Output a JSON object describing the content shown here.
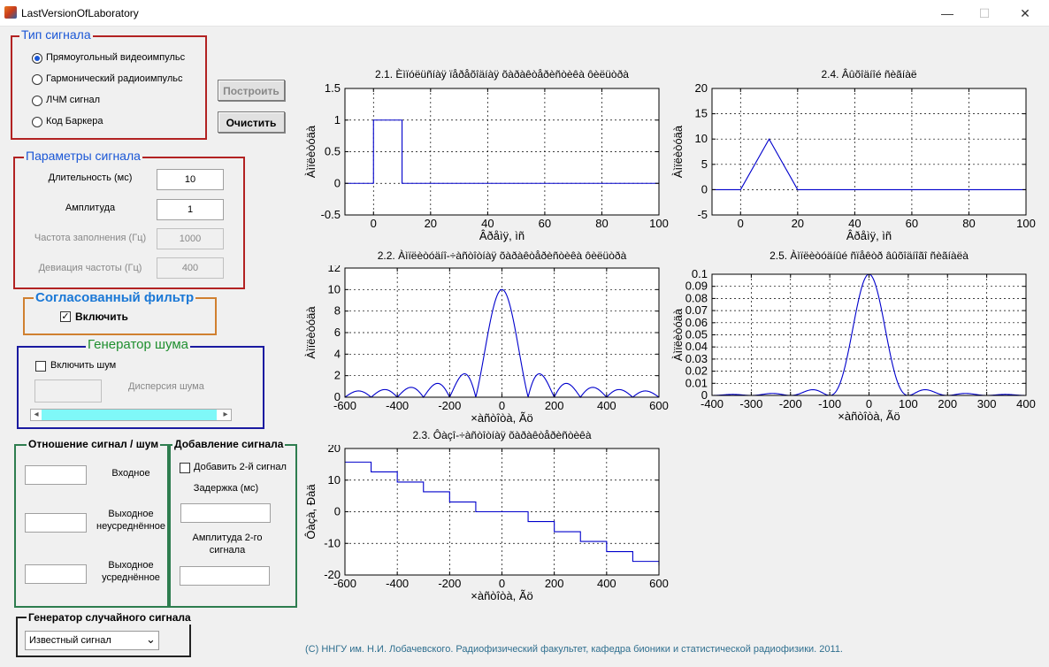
{
  "window": {
    "title": "LastVersionOfLaboratory",
    "minimize": "—",
    "maximize": "☐",
    "close": "✕"
  },
  "signal_type": {
    "legend": "Тип сигнала",
    "options": [
      {
        "label": "Прямоугольный видеоимпульс",
        "selected": true
      },
      {
        "label": "Гармонический радиоимпульс",
        "selected": false
      },
      {
        "label": "ЛЧМ сигнал",
        "selected": false
      },
      {
        "label": "Код Баркера",
        "selected": false
      }
    ]
  },
  "buttons": {
    "build": "Построить",
    "clear": "Очистить"
  },
  "params": {
    "legend": "Параметры сигнала",
    "duration_label": "Длительность (мс)",
    "duration_value": "10",
    "amplitude_label": "Амплитуда",
    "amplitude_value": "1",
    "freq_label": "Частота заполнения (Гц)",
    "freq_value": "1000",
    "deviation_label": "Девиация частоты (Гц)",
    "deviation_value": "400"
  },
  "matched_filter": {
    "legend": "Согласованный фильтр",
    "enable_label": "Включить",
    "enabled": true
  },
  "noise": {
    "legend": "Генератор шума",
    "enable_label": "Включить шум",
    "enabled": false,
    "variance_label": "Дисперсия шума",
    "scroll_left": "◂",
    "scroll_right": "▸"
  },
  "snr": {
    "legend": "Отношение сигнал / шум",
    "input_label": "Входное",
    "out_raw_label": "Выходное неусреднённое",
    "out_avg_label": "Выходное усреднённое"
  },
  "add_signal": {
    "legend": "Добавление сигнала",
    "enable_label": "Добавить 2-й сигнал",
    "delay_label": "Задержка (мс)",
    "amp2_label": "Амплитуда 2-го сигнала"
  },
  "random_gen": {
    "legend": "Генератор случайного сигнала",
    "selected": "Известный сигнал",
    "arrow": "⌄"
  },
  "footer": "(C) ННГУ им. Н.И. Лобачевского. Радиофизический факультет, кафедра бионики и статистической радиофизики. 2011.",
  "colors": {
    "plot_line": "#0000cc",
    "group_red": "#b22222",
    "group_orange": "#d08030",
    "group_blue": "#1a1aa0",
    "group_green": "#2e7d4f"
  },
  "chart_data": [
    {
      "id": "p21",
      "type": "line",
      "title": "2.1. Èìïóëüñíàÿ ïåðåõîäíàÿ õàðàêòåðèñòèêà ôèëüòðà",
      "xlabel": "Âðåìÿ, ìñ",
      "ylabel": "Àìïëèòóäà",
      "xlim": [
        -10,
        100
      ],
      "ylim": [
        -0.5,
        1.5
      ],
      "xticks": [
        0,
        20,
        40,
        60,
        80,
        100
      ],
      "yticks": [
        -0.5,
        0,
        0.5,
        1,
        1.5
      ],
      "grid": true,
      "x": [
        -10,
        0,
        0,
        10,
        10,
        100
      ],
      "y": [
        0,
        0,
        1,
        1,
        0,
        0
      ]
    },
    {
      "id": "p24",
      "type": "line",
      "title": "2.4. Âûõîäíîé ñèãíàë",
      "xlabel": "Âðåìÿ, ìñ",
      "ylabel": "Àìïëèòóäà",
      "xlim": [
        -10,
        100
      ],
      "ylim": [
        -5,
        20
      ],
      "xticks": [
        0,
        20,
        40,
        60,
        80,
        100
      ],
      "yticks": [
        -5,
        0,
        5,
        10,
        15,
        20
      ],
      "grid": true,
      "x": [
        -10,
        0,
        10,
        20,
        100
      ],
      "y": [
        0,
        0,
        10,
        0,
        0
      ]
    },
    {
      "id": "p22",
      "type": "line",
      "title": "2.2. Àìïëèòóäíî-÷àñòîòíàÿ õàðàêòåðèñòèêà ôèëüòðà",
      "xlabel": "×àñòîòà, Ãö",
      "ylabel": "Àìïëèòóäà",
      "xlim": [
        -600,
        600
      ],
      "ylim": [
        0,
        12
      ],
      "xticks": [
        -600,
        -400,
        -200,
        0,
        200,
        400,
        600
      ],
      "yticks": [
        0,
        2,
        4,
        6,
        8,
        10,
        12
      ],
      "grid": true,
      "func": "absinc",
      "peak": 10,
      "zero_spacing": 100
    },
    {
      "id": "p25",
      "type": "line",
      "title": "2.5. Àìïëèòóäíûé ñïåêòð âûõîäíîãî ñèãíàëà",
      "xlabel": "×àñòîòà, Ãö",
      "ylabel": "Àìïëèòóäà",
      "xlim": [
        -400,
        400
      ],
      "ylim": [
        0,
        0.1
      ],
      "xticks": [
        -400,
        -300,
        -200,
        -100,
        0,
        100,
        200,
        300,
        400
      ],
      "yticks": [
        0,
        0.01,
        0.02,
        0.03,
        0.04,
        0.05,
        0.06,
        0.07,
        0.08,
        0.09,
        0.1
      ],
      "grid": true,
      "func": "sinc2",
      "peak": 0.1,
      "zero_spacing": 100
    },
    {
      "id": "p23",
      "type": "line",
      "title": "2.3. Ôàçî-÷àñòîòíàÿ õàðàêòåðèñòèêà",
      "xlabel": "×àñòîòà, Ãö",
      "ylabel": "Ôàçà, Ðàä",
      "xlim": [
        -600,
        600
      ],
      "ylim": [
        -20,
        20
      ],
      "xticks": [
        -600,
        -400,
        -200,
        0,
        200,
        400,
        600
      ],
      "yticks": [
        -20,
        -10,
        0,
        10,
        20
      ],
      "grid": true,
      "x": [
        -600,
        -500,
        -500,
        -400,
        -400,
        -300,
        -300,
        -200,
        -200,
        -100,
        -100,
        100,
        100,
        200,
        200,
        300,
        300,
        400,
        400,
        500,
        500,
        600,
        600
      ],
      "y": [
        15.7,
        15.7,
        12.6,
        12.6,
        9.4,
        9.4,
        6.3,
        6.3,
        3.1,
        3.1,
        0,
        0,
        -3.1,
        -3.1,
        -6.3,
        -6.3,
        -9.4,
        -9.4,
        -12.6,
        -12.6,
        -15.7,
        -15.7,
        -17
      ]
    }
  ]
}
